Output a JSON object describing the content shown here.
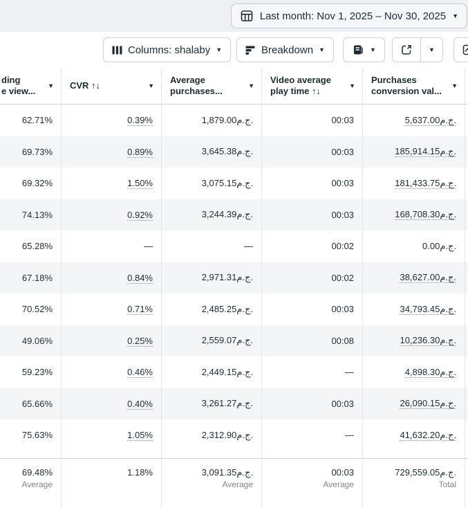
{
  "topbar": {
    "date_button": {
      "label": "Last month: Nov 1, 2025 – Nov 30, 2025"
    }
  },
  "toolbar": {
    "columns_button": {
      "label": "Columns: shalaby"
    },
    "breakdown_button": {
      "label": "Breakdown"
    }
  },
  "icons": {
    "caret": "▼",
    "calendar_table": "table-grid",
    "columns": "three-vertical-bars",
    "breakdown": "stacked-bars",
    "reports": "report-document",
    "export": "open-external-arrow",
    "charts": "line-chart"
  },
  "table": {
    "columns": [
      {
        "id": "lpv",
        "label_lines": [
          "ding",
          "e view..."
        ]
      },
      {
        "id": "cvr",
        "label_lines": [
          "CVR ↑↓",
          ""
        ]
      },
      {
        "id": "avg",
        "label_lines": [
          "Average",
          "purchases..."
        ]
      },
      {
        "id": "time",
        "label_lines": [
          "Video average",
          "play time ↑↓"
        ]
      },
      {
        "id": "conv",
        "label_lines": [
          "Purchases",
          "conversion val..."
        ]
      }
    ],
    "rows": [
      {
        "lpv": "62.71%",
        "cvr": "0.39%",
        "cvr_link": true,
        "avg": "1,879.00ج.م.",
        "time": "00:03",
        "conv": "5,637.00ج.م.",
        "conv_link": true
      },
      {
        "lpv": "69.73%",
        "cvr": "0.89%",
        "cvr_link": true,
        "avg": "3,645.38ج.م.",
        "time": "00:03",
        "conv": "185,914.15ج.م.",
        "conv_link": true
      },
      {
        "lpv": "69.32%",
        "cvr": "1.50%",
        "cvr_link": true,
        "avg": "3,075.15ج.م.",
        "time": "00:03",
        "conv": "181,433.75ج.م.",
        "conv_link": true
      },
      {
        "lpv": "74.13%",
        "cvr": "0.92%",
        "cvr_link": true,
        "avg": "3,244.39ج.م.",
        "time": "00:03",
        "conv": "168,708.30ج.م.",
        "conv_link": true
      },
      {
        "lpv": "65.28%",
        "cvr": "—",
        "cvr_link": false,
        "avg": "—",
        "time": "00:02",
        "conv": "0.00ج.م.",
        "conv_link": false
      },
      {
        "lpv": "67.18%",
        "cvr": "0.84%",
        "cvr_link": true,
        "avg": "2,971.31ج.م.",
        "time": "00:02",
        "conv": "38,627.00ج.م.",
        "conv_link": true
      },
      {
        "lpv": "70.52%",
        "cvr": "0.71%",
        "cvr_link": true,
        "avg": "2,485.25ج.م.",
        "time": "00:03",
        "conv": "34,793.45ج.م.",
        "conv_link": true
      },
      {
        "lpv": "49.06%",
        "cvr": "0.25%",
        "cvr_link": true,
        "avg": "2,559.07ج.م.",
        "time": "00:08",
        "conv": "10,236.30ج.م.",
        "conv_link": true
      },
      {
        "lpv": "59.23%",
        "cvr": "0.46%",
        "cvr_link": true,
        "avg": "2,449.15ج.م.",
        "time": "—",
        "conv": "4,898.30ج.م.",
        "conv_link": true
      },
      {
        "lpv": "65.66%",
        "cvr": "0.40%",
        "cvr_link": true,
        "avg": "3,261.27ج.م.",
        "time": "00:03",
        "conv": "26,090.15ج.م.",
        "conv_link": true
      },
      {
        "lpv": "75.63%",
        "cvr": "1.05%",
        "cvr_link": true,
        "avg": "2,312.90ج.م.",
        "time": "—",
        "conv": "41,632.20ج.م.",
        "conv_link": true
      }
    ],
    "footer": {
      "lpv": {
        "value": "69.48%",
        "label": "Average"
      },
      "cvr": {
        "value": "1.18%",
        "label": ""
      },
      "avg": {
        "value": "3,091.35ج.م.",
        "label": "Average"
      },
      "time": {
        "value": "00:03",
        "label": "Average"
      },
      "conv": {
        "value": "729,559.05ج.م.",
        "label": "Total"
      }
    }
  },
  "colors": {
    "text": "#1c2b33",
    "muted_label": "#80858c",
    "row_alt_bg": "#f4f5f7",
    "gridline": "#e3e5e9",
    "strong_border": "#ced2d8",
    "topbar_bg": "#eef0f3",
    "button_border": "#ccd0d5"
  }
}
